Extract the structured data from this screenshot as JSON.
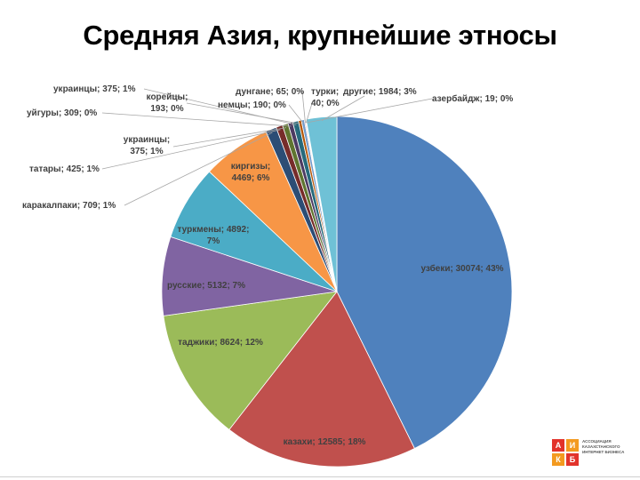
{
  "slide": {
    "title": "Средняя Азия, крупнейшие этносы"
  },
  "logo": {
    "letters": [
      "А",
      "И",
      "К",
      "Б"
    ],
    "text": "АССОЦИАЦИЯ КАЗАХСТАНСКОГО ИНТЕРНЕТ БИЗНЕСА"
  },
  "chart_data": {
    "type": "pie",
    "title": "",
    "start_angle_deg": 0,
    "direction": "clockwise",
    "legend": "none",
    "slices": [
      {
        "label": "узбеки; 30074; 43%",
        "value": 30074,
        "color": "#4f81bd"
      },
      {
        "label": "казахи; 12585; 18%",
        "value": 12585,
        "color": "#c0504d"
      },
      {
        "label": "таджики; 8624; 12%",
        "value": 8624,
        "color": "#9bbb59"
      },
      {
        "label": "русские; 5132; 7%",
        "value": 5132,
        "color": "#8064a2"
      },
      {
        "label": "туркмены; 4892; 7%",
        "value": 4892,
        "color": "#4bacc6"
      },
      {
        "label": "киргизы; 4469; 6%",
        "value": 4469,
        "color": "#f79646"
      },
      {
        "label": "каракалпаки; 709; 1%",
        "value": 709,
        "color": "#2c4d75"
      },
      {
        "label": "татары; 425; 1%",
        "value": 425,
        "color": "#772c2a"
      },
      {
        "label": "украинцы; 375; 1%",
        "value": 375,
        "color": "#5f7530"
      },
      {
        "label": "уйгуры; 309; 0%",
        "value": 309,
        "color": "#4d3b62"
      },
      {
        "label": "украинцы; 375; 1%",
        "value": 375,
        "color": "#276a7c"
      },
      {
        "label": "корейцы; 193; 0%",
        "value": 193,
        "color": "#b65708"
      },
      {
        "label": "немцы; 190; 0%",
        "value": 190,
        "color": "#729aca"
      },
      {
        "label": "дунгане; 65; 0%",
        "value": 65,
        "color": "#cd7371"
      },
      {
        "label": "турки; 40; 0%",
        "value": 40,
        "color": "#afc97a"
      },
      {
        "label": "азербайдж; 19; 0%",
        "value": 19,
        "color": "#9983b5"
      },
      {
        "label": "другие; 1984; 3%",
        "value": 1984,
        "color": "#6fc1d6"
      }
    ]
  }
}
